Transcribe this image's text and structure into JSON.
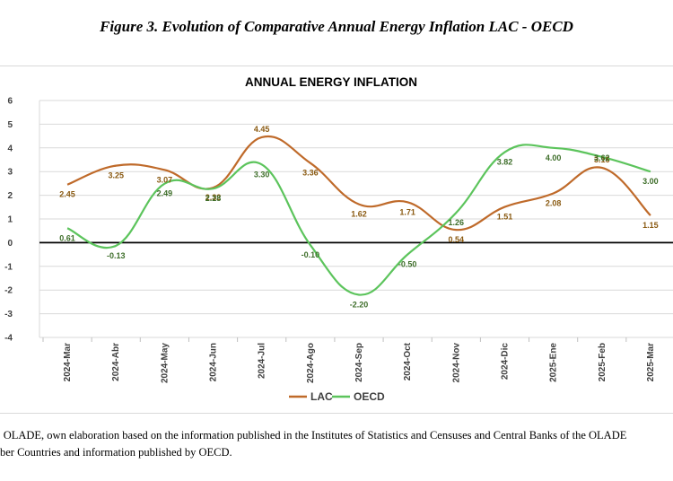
{
  "figure_caption": "Figure 3. Evolution of Comparative Annual Energy Inflation LAC - OECD",
  "source_note": "ce: OLADE, own elaboration based on the information published in the Institutes of Statistics and Censuses and Central Banks of the OLADE\nber Countries and information published by OECD.",
  "chart_data": {
    "type": "line",
    "title": "ANNUAL ENERGY INFLATION",
    "xlabel": "",
    "ylabel": "",
    "categories": [
      "2024-Mar",
      "2024-Abr",
      "2024-May",
      "2024-Jun",
      "2024-Jul",
      "2024-Ago",
      "2024-Sep",
      "2024-Oct",
      "2024-Nov",
      "2024-Dic",
      "2025-Ene",
      "2025-Feb",
      "2025-Mar"
    ],
    "ylim": [
      -4,
      6
    ],
    "yticks": [
      -4,
      -3,
      -2,
      -1,
      0,
      1,
      2,
      3,
      4,
      5,
      6
    ],
    "grid": true,
    "legend": "bottom",
    "series": [
      {
        "name": "LAC",
        "color": "#bf6a2a",
        "label_color": "#8a5a12",
        "values": [
          2.45,
          3.25,
          3.07,
          2.32,
          4.45,
          3.36,
          1.62,
          1.71,
          0.54,
          1.51,
          2.08,
          3.16,
          1.15
        ],
        "labels": [
          "2.45",
          "3.25",
          "3.07",
          "2.32",
          "4.45",
          "3.36",
          "1.62",
          "1.71",
          "0.54",
          "1.51",
          "2.08",
          "3.16",
          "1.15"
        ]
      },
      {
        "name": "OECD",
        "color": "#5cc45c",
        "label_color": "#3e6e2a",
        "values": [
          0.61,
          -0.13,
          2.49,
          2.28,
          3.3,
          -0.1,
          -2.2,
          -0.5,
          1.26,
          3.82,
          4.0,
          3.62,
          3.0
        ],
        "labels": [
          "0.61",
          "-0.13",
          "2.49",
          "2.28",
          "3.30",
          "-0.10",
          "-2.20",
          "-0.50",
          "1.26",
          "3.82",
          "4.00",
          "3.62",
          "3.00"
        ]
      }
    ]
  }
}
